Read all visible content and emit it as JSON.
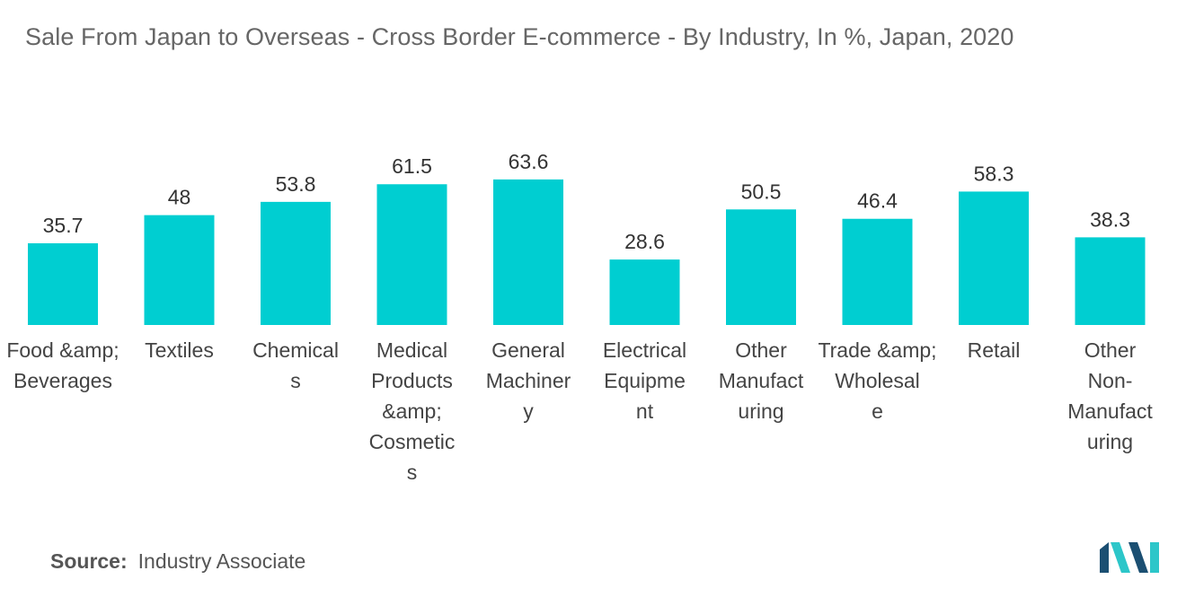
{
  "title": "Sale From Japan to Overseas - Cross Border E-commerce - By Industry, In %, Japan, 2020",
  "source": {
    "label": "Source:",
    "value": "Industry Associate"
  },
  "colors": {
    "bar": "#00CED1",
    "logo_dark": "#1B4F72",
    "logo_light": "#2CC6C9"
  },
  "chart_data": {
    "type": "bar",
    "title": "Sale From Japan to Overseas - Cross Border E-commerce - By Industry, In %, Japan, 2020",
    "xlabel": "",
    "ylabel": "",
    "grid": false,
    "legend": "none",
    "ylim": [
      0,
      70
    ],
    "categories": [
      "Food &amp; Beverages",
      "Textiles",
      "Chemicals",
      "Medical Products &amp; Cosmetics",
      "General Machinery",
      "Electrical Equipment",
      "Other Manufacturing",
      "Trade &amp; Wholesale",
      "Retail",
      "Other Non-Manufacturing"
    ],
    "category_label_lines": [
      [
        "Food &amp;",
        "Beverages"
      ],
      [
        "Textiles"
      ],
      [
        "Chemical",
        "s"
      ],
      [
        "Medical",
        "Products",
        "&amp;",
        "Cosmetic",
        "s"
      ],
      [
        "General",
        "Machiner",
        "y"
      ],
      [
        "Electrical",
        "Equipme",
        "nt"
      ],
      [
        "Other",
        "Manufact",
        "uring"
      ],
      [
        "Trade &amp;",
        "Wholesal",
        "e"
      ],
      [
        "Retail"
      ],
      [
        "Other",
        "Non-",
        "Manufact",
        "uring"
      ]
    ],
    "values": [
      35.7,
      48,
      53.8,
      61.5,
      63.6,
      28.6,
      50.5,
      46.4,
      58.3,
      38.3
    ],
    "value_labels": [
      "35.7",
      "48",
      "53.8",
      "61.5",
      "63.6",
      "28.6",
      "50.5",
      "46.4",
      "58.3",
      "38.3"
    ]
  }
}
